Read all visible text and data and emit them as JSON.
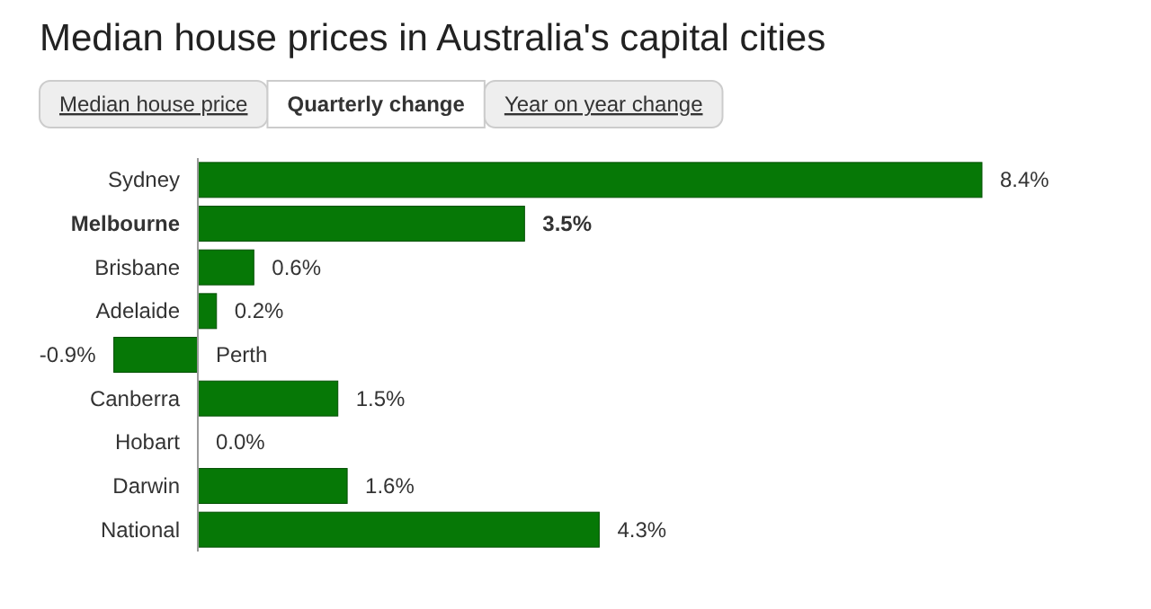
{
  "chart_data": {
    "type": "bar",
    "orientation": "horizontal",
    "title": "Median house prices in Australia's capital cities",
    "annotations": [
      "Median house price",
      "Quarterly change",
      "Year on year change"
    ],
    "categories": [
      "Sydney",
      "Melbourne",
      "Brisbane",
      "Adelaide",
      "Perth",
      "Canberra",
      "Hobart",
      "Darwin",
      "National"
    ],
    "values": [
      8.4,
      3.5,
      0.6,
      0.2,
      -0.9,
      1.5,
      0.0,
      1.6,
      4.3
    ],
    "value_labels": [
      "8.4%",
      "3.5%",
      "0.6%",
      "0.2%",
      "-0.9%",
      "1.5%",
      "0.0%",
      "1.6%",
      "4.3%"
    ],
    "color": "#067806"
  }
}
